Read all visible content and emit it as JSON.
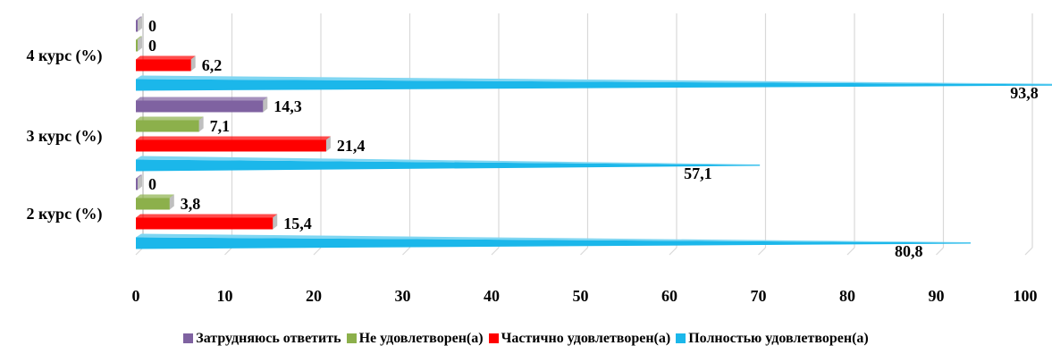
{
  "chart_data": {
    "type": "bar",
    "orientation": "horizontal",
    "categories": [
      "2 курс (%)",
      "3 курс (%)",
      "4 курс (%)"
    ],
    "series": [
      {
        "name": "Полностью удовлетворен(а)",
        "color": "#1BB7EA",
        "values": [
          80.8,
          57.1,
          93.8
        ],
        "labels": [
          "80,8",
          "57,1",
          "93,8"
        ]
      },
      {
        "name": "Частично удовлетворен(а)",
        "color": "#FF0000",
        "values": [
          15.4,
          21.4,
          6.2
        ],
        "labels": [
          "15,4",
          "21,4",
          "6,2"
        ]
      },
      {
        "name": "Не удовлетворен(а)",
        "color": "#8CB04B",
        "values": [
          3.8,
          7.1,
          0
        ],
        "labels": [
          "3,8",
          "7,1",
          "0"
        ]
      },
      {
        "name": "Затрудняюсь ответить",
        "color": "#7F62A1",
        "values": [
          0,
          14.3,
          0
        ],
        "labels": [
          "0",
          "14,3",
          "0"
        ]
      }
    ],
    "xlim": [
      0,
      100
    ],
    "xticks": [
      "0",
      "10",
      "20",
      "30",
      "40",
      "50",
      "60",
      "70",
      "80",
      "90",
      "100"
    ],
    "grid": true,
    "legend_position": "bottom"
  }
}
